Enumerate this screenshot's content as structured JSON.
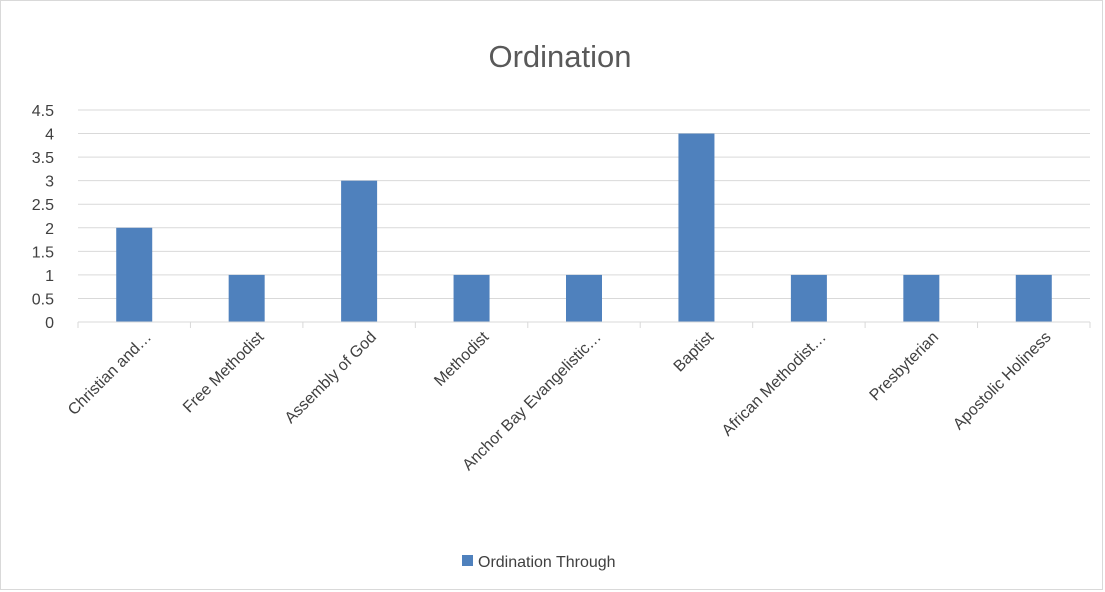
{
  "chart_data": {
    "type": "bar",
    "title": "Ordination",
    "categories": [
      "Christian and…",
      "Free Methodist",
      "Assembly of God",
      "Methodist",
      "Anchor Bay Evangelistic…",
      "Baptist",
      "African Methodist…",
      "Presbyterian",
      "Apostolic Holiness"
    ],
    "series": [
      {
        "name": "Ordination Through",
        "values": [
          2,
          1,
          3,
          1,
          1,
          4,
          1,
          1,
          1
        ],
        "color": "#4f81bd"
      }
    ],
    "y_ticks": [
      "0",
      "0.5",
      "1",
      "1.5",
      "2",
      "2.5",
      "3",
      "3.5",
      "4",
      "4.5"
    ],
    "ylim": [
      0,
      4.5
    ],
    "grid": true,
    "legend_position": "bottom",
    "xlabel": "",
    "ylabel": ""
  }
}
